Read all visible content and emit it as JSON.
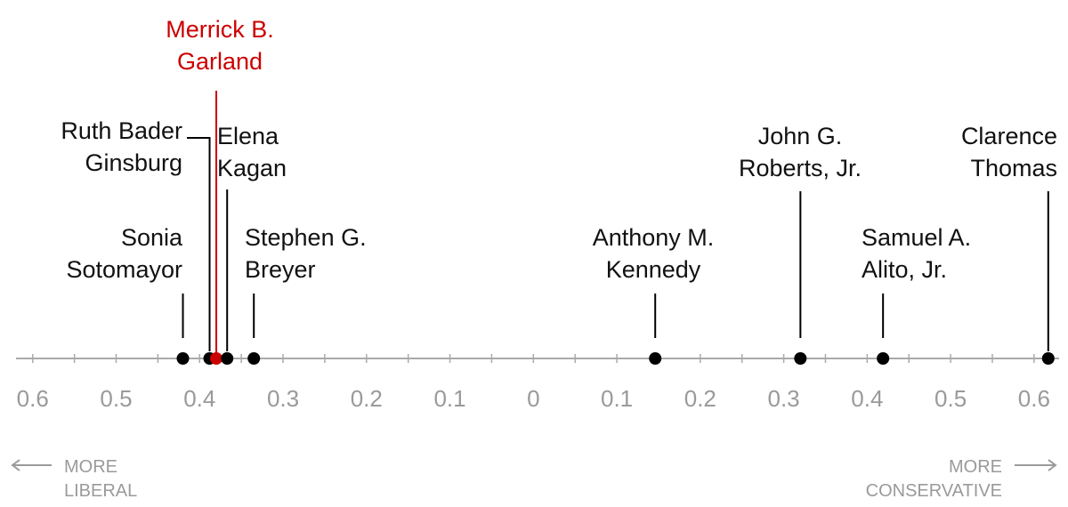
{
  "chart_data": {
    "type": "dot",
    "categories": [
      [
        "Sonia",
        "Sotomayor"
      ],
      [
        "Ruth Bader",
        "Ginsburg"
      ],
      [
        "Merrick B.",
        "Garland"
      ],
      [
        "Elena",
        "Kagan"
      ],
      [
        "Stephen G.",
        "Breyer"
      ],
      [
        "Anthony M.",
        "Kennedy"
      ],
      [
        "John G.",
        "Roberts, Jr."
      ],
      [
        "Samuel A.",
        "Alito, Jr."
      ],
      [
        "Clarence",
        "Thomas"
      ]
    ],
    "values": [
      -0.42,
      -0.388,
      -0.38,
      -0.367,
      -0.335,
      0.146,
      0.32,
      0.419,
      0.617
    ],
    "colors": [
      "#000000",
      "#000000",
      "#000000",
      "#000000",
      "#000000",
      "#000000",
      "#000000",
      "#000000",
      "#000000"
    ],
    "highlight_color": "#cc0000",
    "highlight_index": 2,
    "xlim": [
      -0.62,
      0.63
    ],
    "xticks": [
      {
        "value": -0.6,
        "label": "0.6"
      },
      {
        "value": -0.5,
        "label": "0.5"
      },
      {
        "value": -0.4,
        "label": "0.4"
      },
      {
        "value": -0.3,
        "label": "0.3"
      },
      {
        "value": -0.2,
        "label": "0.2"
      },
      {
        "value": -0.1,
        "label": "0.1"
      },
      0,
      0.1,
      0.2,
      0.3,
      0.4,
      0.5,
      0.6
    ],
    "xminorticks": [
      -0.6,
      -0.55,
      -0.5,
      -0.45,
      -0.4,
      -0.35,
      -0.3,
      -0.25,
      -0.2,
      -0.15,
      -0.1,
      -0.05,
      0,
      0.05,
      0.1,
      0.15,
      0.2,
      0.25,
      0.3,
      0.35,
      0.4,
      0.45,
      0.5,
      0.55,
      0.6
    ],
    "left_label": [
      "MORE",
      "LIBERAL"
    ],
    "right_label": [
      "MORE",
      "CONSERVATIVE"
    ]
  }
}
